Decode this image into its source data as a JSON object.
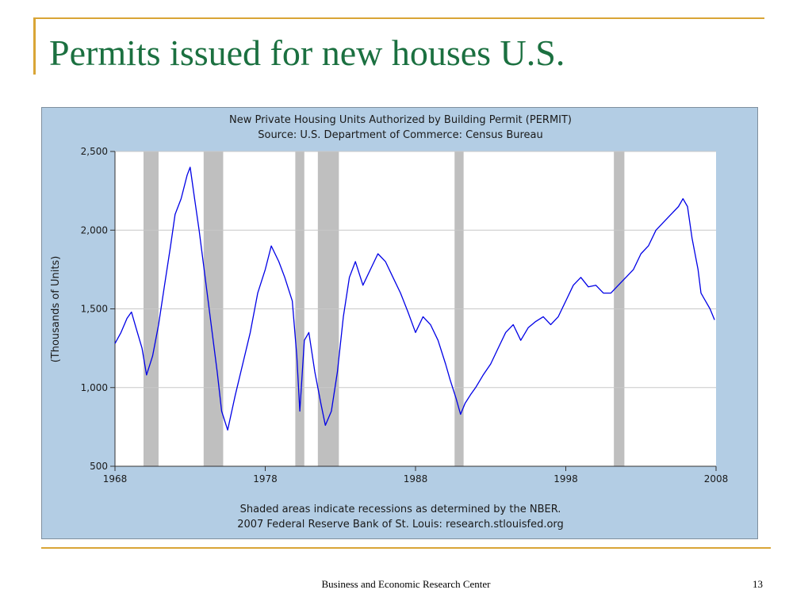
{
  "slide": {
    "title": "Permits issued for new houses U.S.",
    "footer_text": "Business and Economic Research Center",
    "page_number": "13",
    "accent_color": "#d9a536",
    "title_color": "#1b7040"
  },
  "chart_data": {
    "type": "line",
    "title": "New Private Housing Units Authorized by Building Permit (PERMIT)",
    "subtitle": "Source: U.S. Department of Commerce: Census Bureau",
    "ylabel": "(Thousands of Units)",
    "xlabel": "",
    "xlim": [
      1968,
      2008
    ],
    "ylim": [
      500,
      2500
    ],
    "xticks": [
      1968,
      1978,
      1988,
      1998,
      2008
    ],
    "yticks": [
      500,
      1000,
      1500,
      2000,
      2500
    ],
    "ytick_labels": [
      "500",
      "1,000",
      "1,500",
      "2,000",
      "2,500"
    ],
    "grid": "horizontal",
    "note_line1": "Shaded areas indicate recessions as determined by the NBER.",
    "note_line2": "2007 Federal Reserve Bank of St. Louis: research.stlouisfed.org",
    "line_color": "#0000e6",
    "recession_color": "#bfbfbf",
    "recessions": [
      [
        1969.9,
        1970.9
      ],
      [
        1973.9,
        1975.2
      ],
      [
        1980.0,
        1980.6
      ],
      [
        1981.5,
        1982.9
      ],
      [
        1990.6,
        1991.2
      ],
      [
        2001.2,
        2001.9
      ]
    ],
    "series": [
      {
        "x": [
          1968.0,
          1968.4,
          1968.8,
          1969.1,
          1969.4,
          1969.8,
          1970.1,
          1970.5,
          1970.9,
          1971.3,
          1971.7,
          1972.0,
          1972.4,
          1972.8,
          1973.0,
          1973.3,
          1973.6,
          1974.0,
          1974.4,
          1974.8,
          1975.1,
          1975.5,
          1976.0,
          1976.5,
          1977.0,
          1977.5,
          1978.0,
          1978.4,
          1978.9,
          1979.3,
          1979.8,
          1980.1,
          1980.3,
          1980.6,
          1980.9,
          1981.3,
          1981.7,
          1982.0,
          1982.4,
          1982.8,
          1983.2,
          1983.6,
          1984.0,
          1984.5,
          1985.0,
          1985.5,
          1986.0,
          1986.5,
          1987.0,
          1987.5,
          1988.0,
          1988.5,
          1989.0,
          1989.5,
          1990.0,
          1990.3,
          1990.7,
          1991.0,
          1991.3,
          1991.7,
          1992.0,
          1992.5,
          1993.0,
          1993.5,
          1994.0,
          1994.5,
          1995.0,
          1995.5,
          1996.0,
          1996.5,
          1997.0,
          1997.5,
          1998.0,
          1998.5,
          1999.0,
          1999.5,
          2000.0,
          2000.5,
          2001.0,
          2001.5,
          2002.0,
          2002.5,
          2003.0,
          2003.5,
          2004.0,
          2004.5,
          2005.0,
          2005.5,
          2005.8,
          2006.1,
          2006.4,
          2006.8,
          2007.0,
          2007.3,
          2007.6,
          2007.9
        ],
        "values": [
          1280,
          1350,
          1440,
          1480,
          1380,
          1250,
          1080,
          1200,
          1400,
          1650,
          1900,
          2100,
          2200,
          2350,
          2400,
          2200,
          2000,
          1700,
          1400,
          1100,
          850,
          730,
          950,
          1150,
          1350,
          1600,
          1750,
          1900,
          1800,
          1700,
          1550,
          1200,
          850,
          1300,
          1350,
          1100,
          900,
          760,
          850,
          1100,
          1450,
          1700,
          1800,
          1650,
          1750,
          1850,
          1800,
          1700,
          1600,
          1480,
          1350,
          1450,
          1400,
          1300,
          1150,
          1050,
          930,
          830,
          900,
          960,
          1000,
          1080,
          1150,
          1250,
          1350,
          1400,
          1300,
          1380,
          1420,
          1450,
          1400,
          1450,
          1550,
          1650,
          1700,
          1640,
          1650,
          1600,
          1600,
          1650,
          1700,
          1750,
          1850,
          1900,
          2000,
          2050,
          2100,
          2150,
          2200,
          2150,
          1950,
          1750,
          1600,
          1550,
          1500,
          1430
        ]
      }
    ]
  }
}
